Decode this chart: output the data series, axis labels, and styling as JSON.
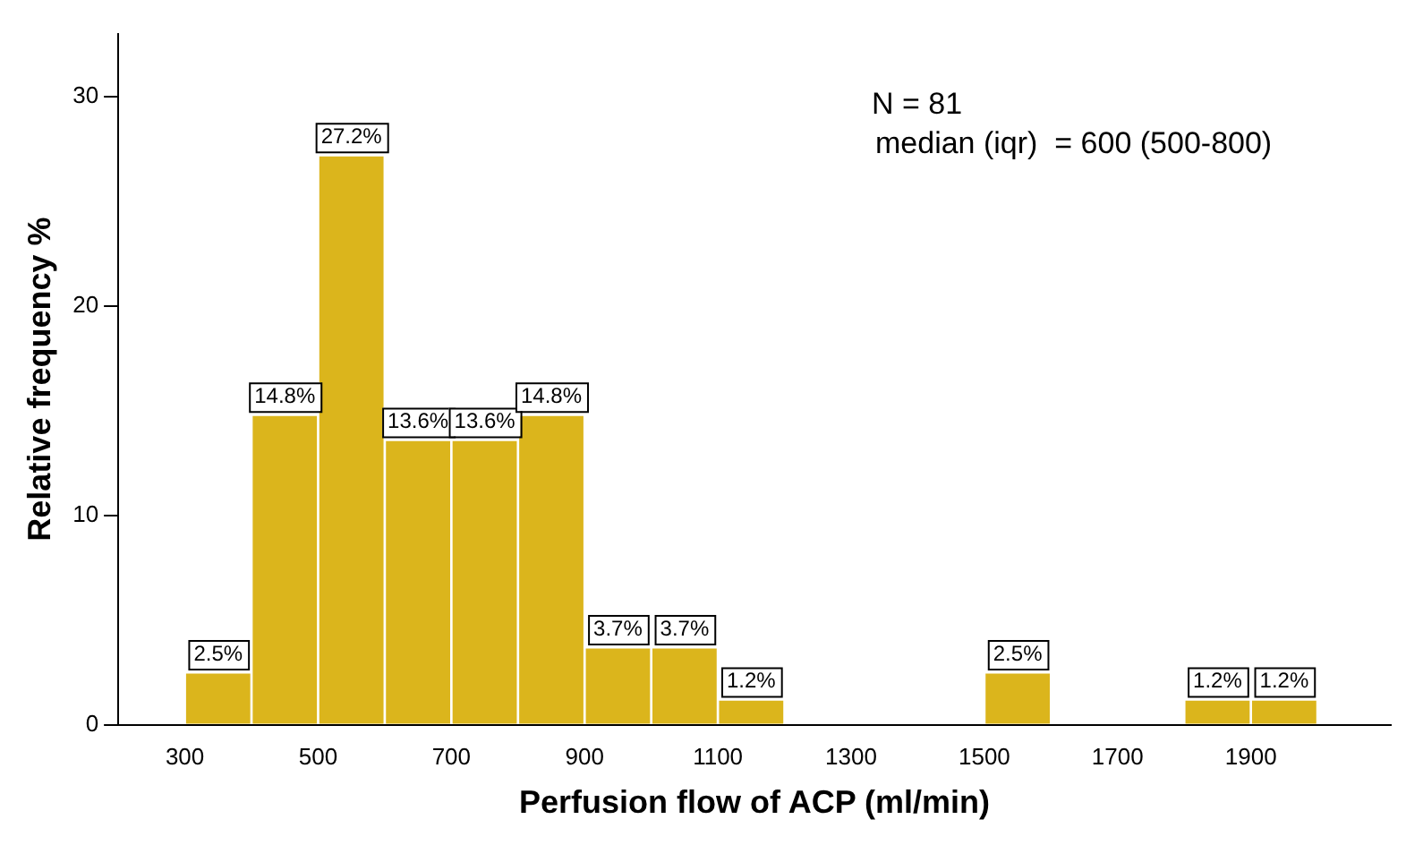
{
  "chart_data": {
    "type": "histogram",
    "xlabel": "Perfusion flow of ACP (ml/min)",
    "ylabel": "Relative frequency %",
    "bins": [
      300,
      400,
      500,
      600,
      700,
      800,
      900,
      1000,
      1100,
      1200,
      1300,
      1400,
      1500,
      1600,
      1700,
      1800,
      1900,
      2000
    ],
    "values": [
      2.5,
      14.8,
      27.2,
      13.6,
      13.6,
      14.8,
      3.7,
      3.7,
      1.2,
      0,
      0,
      0,
      2.5,
      0,
      0,
      1.2,
      1.2
    ],
    "value_labels": [
      "2.5%",
      "14.8%",
      "27.2%",
      "13.6%",
      "13.6%",
      "14.8%",
      "3.7%",
      "3.7%",
      "1.2%",
      null,
      null,
      null,
      "2.5%",
      null,
      null,
      "1.2%",
      "1.2%"
    ],
    "color": "#dbb51c",
    "xlim": [
      200,
      2110
    ],
    "xticks": [
      300,
      500,
      700,
      900,
      1100,
      1300,
      1500,
      1700,
      1900
    ],
    "ylim": [
      0,
      33
    ],
    "yticks": [
      0,
      10,
      20,
      30
    ],
    "grid": false,
    "legend": false,
    "annotations": [
      "N = 81",
      "median (iqr)  = 600 (500-800)"
    ]
  }
}
